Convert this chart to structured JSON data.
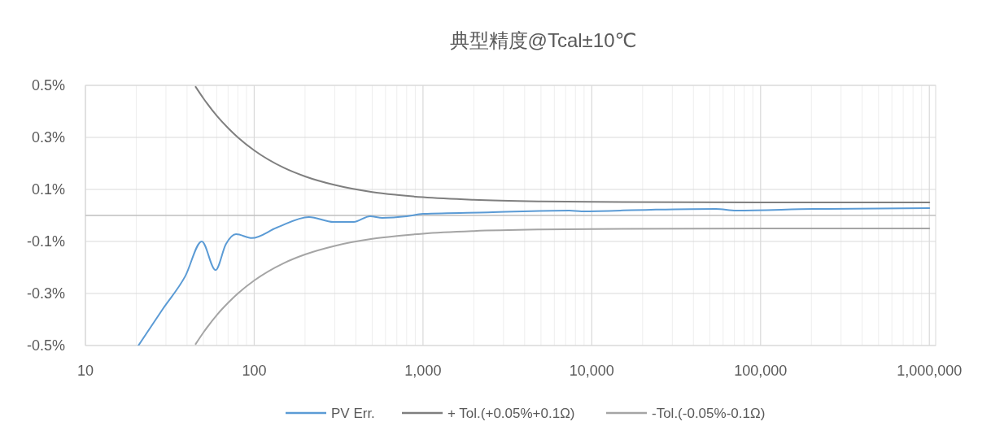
{
  "chart_data": {
    "type": "line",
    "title": "典型精度@Tcal±10℃",
    "xlim": [
      10,
      1090000
    ],
    "log": "x",
    "xticks": [
      {
        "value": 10,
        "label": "10"
      },
      {
        "value": 100,
        "label": "100"
      },
      {
        "value": 1000,
        "label": "1,000"
      },
      {
        "value": 10000,
        "label": "10,000"
      },
      {
        "value": 100000,
        "label": "100,000"
      },
      {
        "value": 1000000,
        "label": "1,000,000"
      }
    ],
    "ylim": [
      -0.5,
      0.5
    ],
    "yticks": [
      {
        "value": -0.5,
        "label": "-0.5%"
      },
      {
        "value": -0.3,
        "label": "-0.3%"
      },
      {
        "value": -0.1,
        "label": "-0.1%"
      },
      {
        "value": 0.1,
        "label": "0.1%"
      },
      {
        "value": 0.3,
        "label": "0.3%"
      },
      {
        "value": 0.5,
        "label": "0.5%"
      }
    ],
    "grid": true,
    "legend": "bottom",
    "marker": "none",
    "line_style": "solid",
    "ref_lines": [
      {
        "axis": "y",
        "value": 0,
        "color": "#bfbfbf"
      }
    ],
    "series": [
      {
        "name": "PV Err.",
        "color": "#5b9bd5",
        "x": [
          20.6,
          28.7,
          39,
          48.9,
          59,
          68,
          78,
          97,
          136,
          211,
          295,
          389,
          486,
          574,
          801,
          1000,
          2432,
          7365,
          8710,
          22340,
          54300,
          71600,
          205600,
          1000000
        ],
        "values": [
          -0.5,
          -0.36,
          -0.234,
          -0.1,
          -0.21,
          -0.11,
          -0.072,
          -0.087,
          -0.047,
          -0.006,
          -0.025,
          -0.025,
          -0.003,
          -0.009,
          -0.003,
          0.006,
          0.012,
          0.019,
          0.016,
          0.022,
          0.025,
          0.019,
          0.025,
          0.028
        ]
      },
      {
        "name": "+ Tol.(+0.05%+0.1Ω)",
        "color": "#7f7f7f",
        "x": [
          45,
          50,
          60,
          70,
          80,
          100,
          150,
          200,
          300,
          500,
          700,
          1000,
          2000,
          5000,
          10000,
          100000,
          1000000
        ],
        "values": [
          0.494,
          0.45,
          0.383,
          0.336,
          0.3,
          0.25,
          0.183,
          0.15,
          0.117,
          0.09,
          0.079,
          0.07,
          0.06,
          0.054,
          0.052,
          0.05,
          0.05
        ]
      },
      {
        "name": "-Tol.(-0.05%-0.1Ω)",
        "color": "#a5a5a5",
        "x": [
          45,
          50,
          60,
          70,
          80,
          100,
          150,
          200,
          300,
          500,
          700,
          1000,
          2000,
          5000,
          10000,
          100000,
          1000000
        ],
        "values": [
          -0.494,
          -0.45,
          -0.383,
          -0.336,
          -0.3,
          -0.25,
          -0.183,
          -0.15,
          -0.117,
          -0.09,
          -0.079,
          -0.07,
          -0.06,
          -0.054,
          -0.052,
          -0.05,
          -0.05
        ]
      }
    ]
  }
}
